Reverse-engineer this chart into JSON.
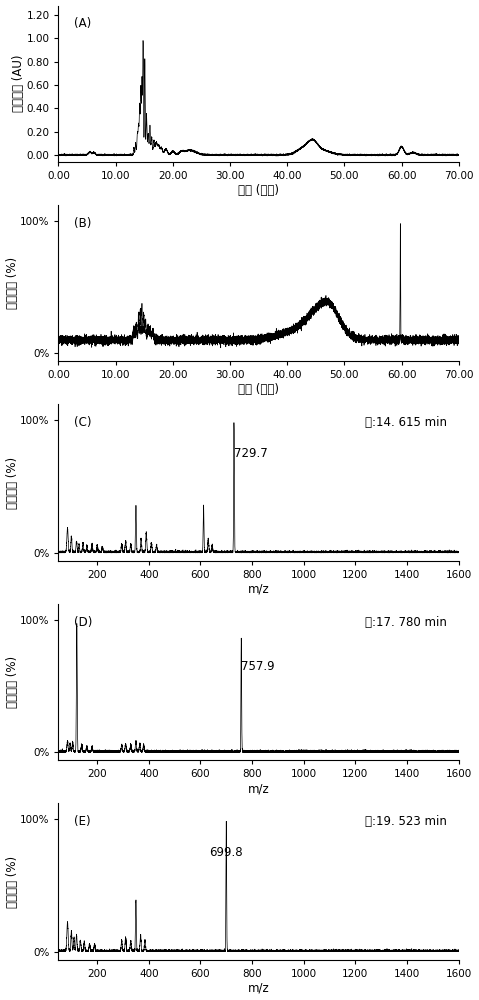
{
  "panel_A": {
    "label": "(A)",
    "ylabel": "紫外吸收 (AU)",
    "xlabel": "时间 (分钟)",
    "xlim": [
      0,
      70
    ],
    "ylim": [
      -0.06,
      1.28
    ],
    "yticks": [
      0.0,
      0.2,
      0.4,
      0.6,
      0.8,
      1.0,
      1.2
    ],
    "xticks": [
      0.0,
      10.0,
      20.0,
      30.0,
      40.0,
      50.0,
      60.0,
      70.0
    ]
  },
  "panel_B": {
    "label": "(B)",
    "ylabel": "响应强度 (%)",
    "xlabel": "时间 (分钟)",
    "xlim": [
      0,
      70
    ],
    "ytick_labels": [
      "0%",
      "100%"
    ],
    "xticks": [
      0.0,
      10.0,
      20.0,
      30.0,
      40.0,
      50.0,
      60.0,
      70.0
    ]
  },
  "panel_C": {
    "label": "(C)",
    "ylabel": "响应强度 (%)",
    "xlabel": "m/z",
    "xlim": [
      50,
      1600
    ],
    "annotation": "729.7",
    "peak_label": "峰:14. 615 min",
    "ytick_labels": [
      "0%",
      "100%"
    ],
    "xticks": [
      200,
      400,
      600,
      800,
      1000,
      1200,
      1400,
      1600
    ]
  },
  "panel_D": {
    "label": "(D)",
    "ylabel": "响应强度 (%)",
    "xlabel": "m/z",
    "xlim": [
      50,
      1600
    ],
    "annotation": "757.9",
    "peak_label": "峰:17. 780 min",
    "ytick_labels": [
      "0%",
      "100%"
    ],
    "xticks": [
      200,
      400,
      600,
      800,
      1000,
      1200,
      1400,
      1600
    ]
  },
  "panel_E": {
    "label": "(E)",
    "ylabel": "响应强度 (%)",
    "xlabel": "m/z",
    "xlim": [
      50,
      1600
    ],
    "annotation": "699.8",
    "peak_label": "峰:19. 523 min",
    "ytick_labels": [
      "0%",
      "100%"
    ],
    "xticks": [
      200,
      400,
      600,
      800,
      1000,
      1200,
      1400,
      1600
    ]
  }
}
